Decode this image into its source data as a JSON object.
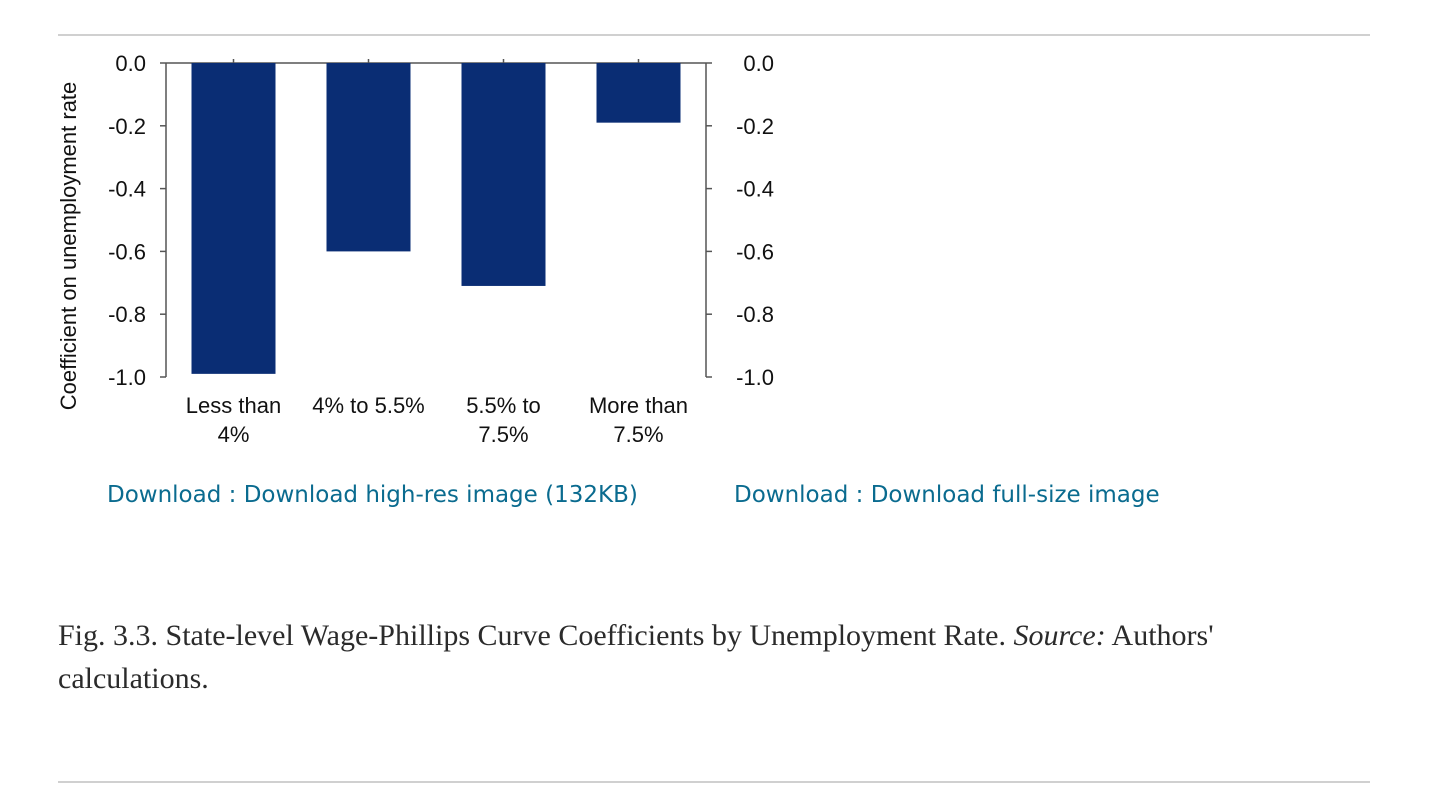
{
  "chart_data": {
    "type": "bar",
    "categories": [
      [
        "Less than",
        "4%"
      ],
      [
        "4% to 5.5%"
      ],
      [
        "5.5% to",
        "7.5%"
      ],
      [
        "More than",
        "7.5%"
      ]
    ],
    "values": [
      -0.99,
      -0.6,
      -0.71,
      -0.19
    ],
    "ylabel": "Coefficient on unemployment rate",
    "ylim": [
      -1.0,
      0.0
    ],
    "yticks": [
      "0.0",
      "-0.2",
      "-0.4",
      "-0.6",
      "-0.8",
      "-1.0"
    ],
    "right_axis_ticks": [
      "0.0",
      "-0.2",
      "-0.4",
      "-0.6",
      "-0.8",
      "-1.0"
    ],
    "bar_color": "#0a2d74",
    "grid": false,
    "legend": "none"
  },
  "links": {
    "high_res": "Download : Download high-res image (132KB)",
    "full_size": "Download : Download full-size image"
  },
  "caption": {
    "label": "Fig. 3.3.",
    "text": "State-level Wage-Phillips Curve Coefficients by Unemployment Rate.",
    "source_label": "Source:",
    "source_text": "Authors' calculations."
  }
}
